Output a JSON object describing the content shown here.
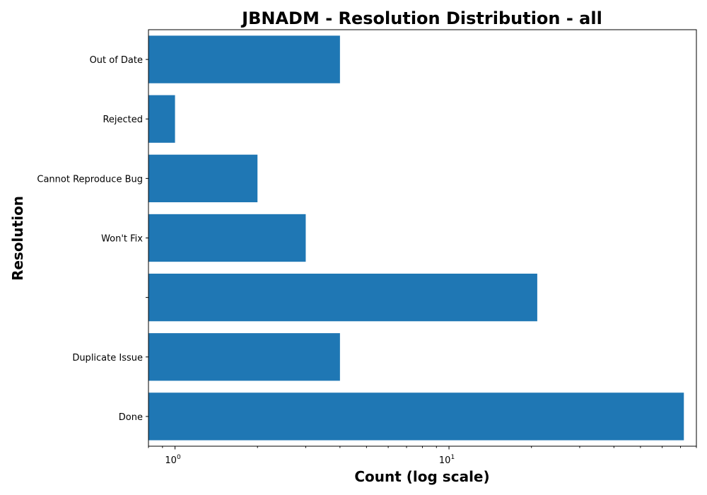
{
  "chart_data": {
    "type": "bar",
    "orientation": "horizontal",
    "title": "JBNADM - Resolution Distribution - all",
    "xlabel": "Count (log scale)",
    "ylabel": "Resolution",
    "xscale": "log",
    "xlim": [
      0.8,
      80
    ],
    "grid": false,
    "color": "#1f77b4",
    "categories": [
      "Done",
      "Duplicate Issue",
      "",
      "Won't Fix",
      "Cannot Reproduce Bug",
      "Rejected",
      "Out of Date"
    ],
    "values": [
      72,
      4,
      21,
      3,
      2,
      1,
      4
    ],
    "x_ticks": [
      {
        "value": 1,
        "base": "10",
        "exp": "0"
      },
      {
        "value": 10,
        "base": "10",
        "exp": "1"
      }
    ]
  }
}
